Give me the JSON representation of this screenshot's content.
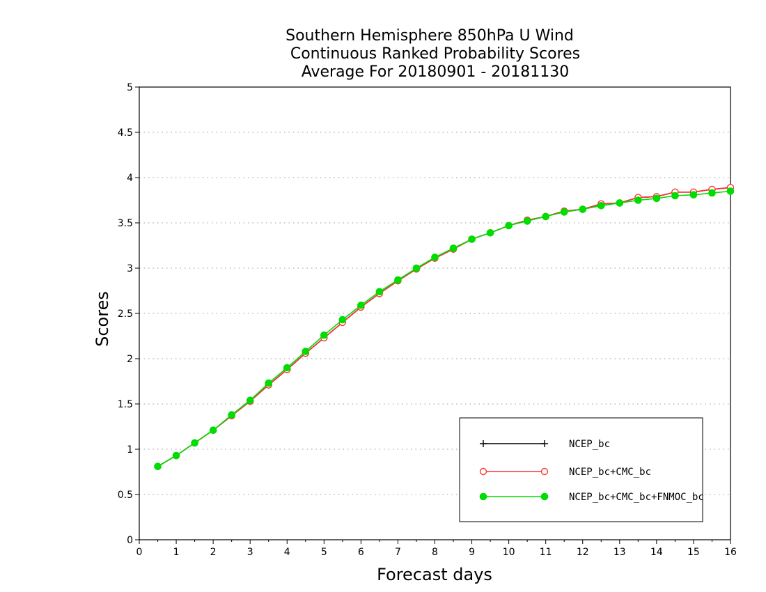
{
  "chart_data": {
    "type": "line",
    "title": [
      "Southern Hemisphere 850hPa U Wind",
      "Continuous Ranked Probability Scores",
      "Average For 20180901 - 20181130"
    ],
    "xlabel": "Forecast days",
    "ylabel": "Scores",
    "xlim": [
      0,
      16
    ],
    "ylim": [
      0,
      5
    ],
    "xticks": [
      "0",
      "1",
      "2",
      "3",
      "4",
      "5",
      "6",
      "7",
      "8",
      "9",
      "10",
      "11",
      "12",
      "13",
      "14",
      "15",
      "16"
    ],
    "yticks": [
      "0",
      "0.5",
      "1",
      "1.5",
      "2",
      "2.5",
      "3",
      "3.5",
      "4",
      "4.5",
      "5"
    ],
    "grid": true,
    "legend_position": "bottom-right",
    "x": [
      0.5,
      1,
      1.5,
      2,
      2.5,
      3,
      3.5,
      4,
      4.5,
      5,
      5.5,
      6,
      6.5,
      7,
      7.5,
      8,
      8.5,
      9,
      9.5,
      10,
      10.5,
      11,
      11.5,
      12,
      12.5,
      13,
      13.5,
      14,
      14.5,
      15,
      15.5,
      16
    ],
    "series": [
      {
        "name": "NCEP_bc",
        "color": "#000000",
        "marker": "plus",
        "values": [
          0.81,
          0.93,
          1.07,
          1.21,
          1.37,
          1.53,
          1.71,
          1.88,
          2.06,
          2.23,
          2.4,
          2.57,
          2.72,
          2.86,
          2.99,
          3.11,
          3.21,
          3.32,
          3.39,
          3.47,
          3.53,
          3.57,
          3.63,
          3.65,
          3.71,
          3.72,
          3.78,
          3.79,
          3.84,
          3.84,
          3.87,
          3.89
        ]
      },
      {
        "name": "NCEP_bc+CMC_bc",
        "color": "#ff3333",
        "marker": "open-circle",
        "values": [
          0.81,
          0.93,
          1.07,
          1.21,
          1.37,
          1.53,
          1.71,
          1.88,
          2.06,
          2.23,
          2.4,
          2.57,
          2.72,
          2.86,
          2.99,
          3.11,
          3.21,
          3.32,
          3.39,
          3.47,
          3.53,
          3.57,
          3.63,
          3.65,
          3.71,
          3.72,
          3.78,
          3.79,
          3.84,
          3.84,
          3.87,
          3.89
        ]
      },
      {
        "name": "NCEP_bc+CMC_bc+FNMOC_bc",
        "color": "#00dd00",
        "marker": "filled-circle",
        "values": [
          0.81,
          0.93,
          1.07,
          1.21,
          1.38,
          1.54,
          1.73,
          1.9,
          2.08,
          2.26,
          2.43,
          2.59,
          2.74,
          2.87,
          3.0,
          3.12,
          3.22,
          3.32,
          3.39,
          3.47,
          3.52,
          3.57,
          3.62,
          3.65,
          3.69,
          3.72,
          3.75,
          3.77,
          3.8,
          3.81,
          3.83,
          3.85
        ]
      }
    ]
  }
}
